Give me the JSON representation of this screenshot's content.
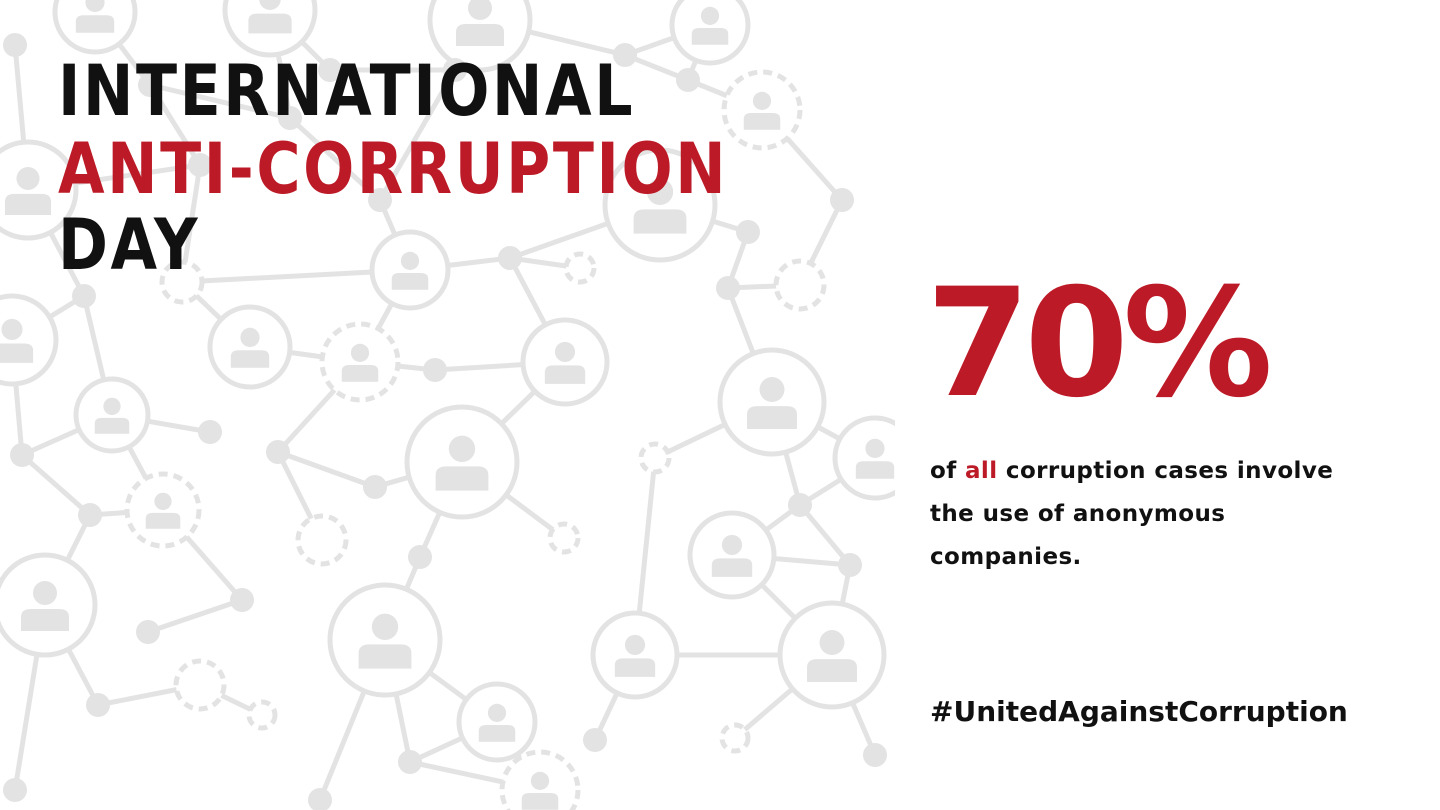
{
  "colors": {
    "background": "#ffffff",
    "text": "#111111",
    "accent": "#bd1a27",
    "pattern": "#e3e3e3"
  },
  "background_pattern": {
    "icon": "person-network-icon"
  },
  "title": {
    "line1": "INTERNATIONAL",
    "line2": "ANTI-CORRUPTION",
    "line3": "DAY"
  },
  "stat": {
    "value": "70%",
    "description_prefix": "of ",
    "description_highlight": "all",
    "description_line1_rest": " corruption cases involve",
    "description_line2": "the use of anonymous",
    "description_line3": "companies."
  },
  "hashtag": "#UnitedAgainstCorruption"
}
